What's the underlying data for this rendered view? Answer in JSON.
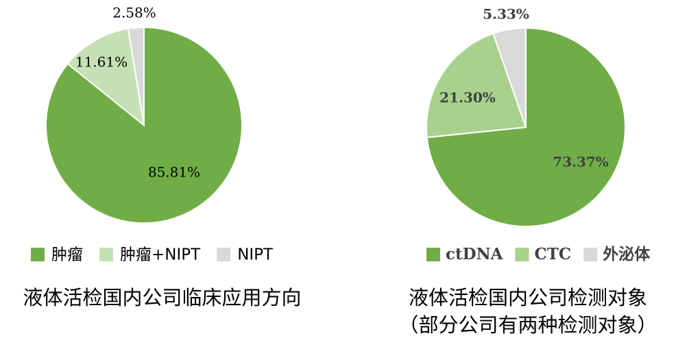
{
  "chart_data": [
    {
      "type": "pie",
      "title": "液体活检国内公司临床应用方向",
      "slices": [
        {
          "label": "肿瘤",
          "value": 85.81,
          "display": "85.81%",
          "color": "#70ad47"
        },
        {
          "label": "肿瘤+NIPT",
          "value": 11.61,
          "display": "11.61%",
          "color": "#c5e0b4"
        },
        {
          "label": "NIPT",
          "value": 2.58,
          "display": "2.58%",
          "color": "#d9d9d9"
        }
      ],
      "legend_position": "bottom"
    },
    {
      "type": "pie",
      "title": "液体活检国内公司检测对象",
      "subtitle": "（部分公司有两种检测对象）",
      "slices": [
        {
          "label": "ctDNA",
          "value": 73.37,
          "display": "73.37%",
          "color": "#70ad47"
        },
        {
          "label": "CTC",
          "value": 21.3,
          "display": "21.30%",
          "color": "#a9d18e"
        },
        {
          "label": "外泌体",
          "value": 5.33,
          "display": "5.33%",
          "color": "#d9d9d9"
        }
      ],
      "legend_position": "bottom"
    }
  ]
}
